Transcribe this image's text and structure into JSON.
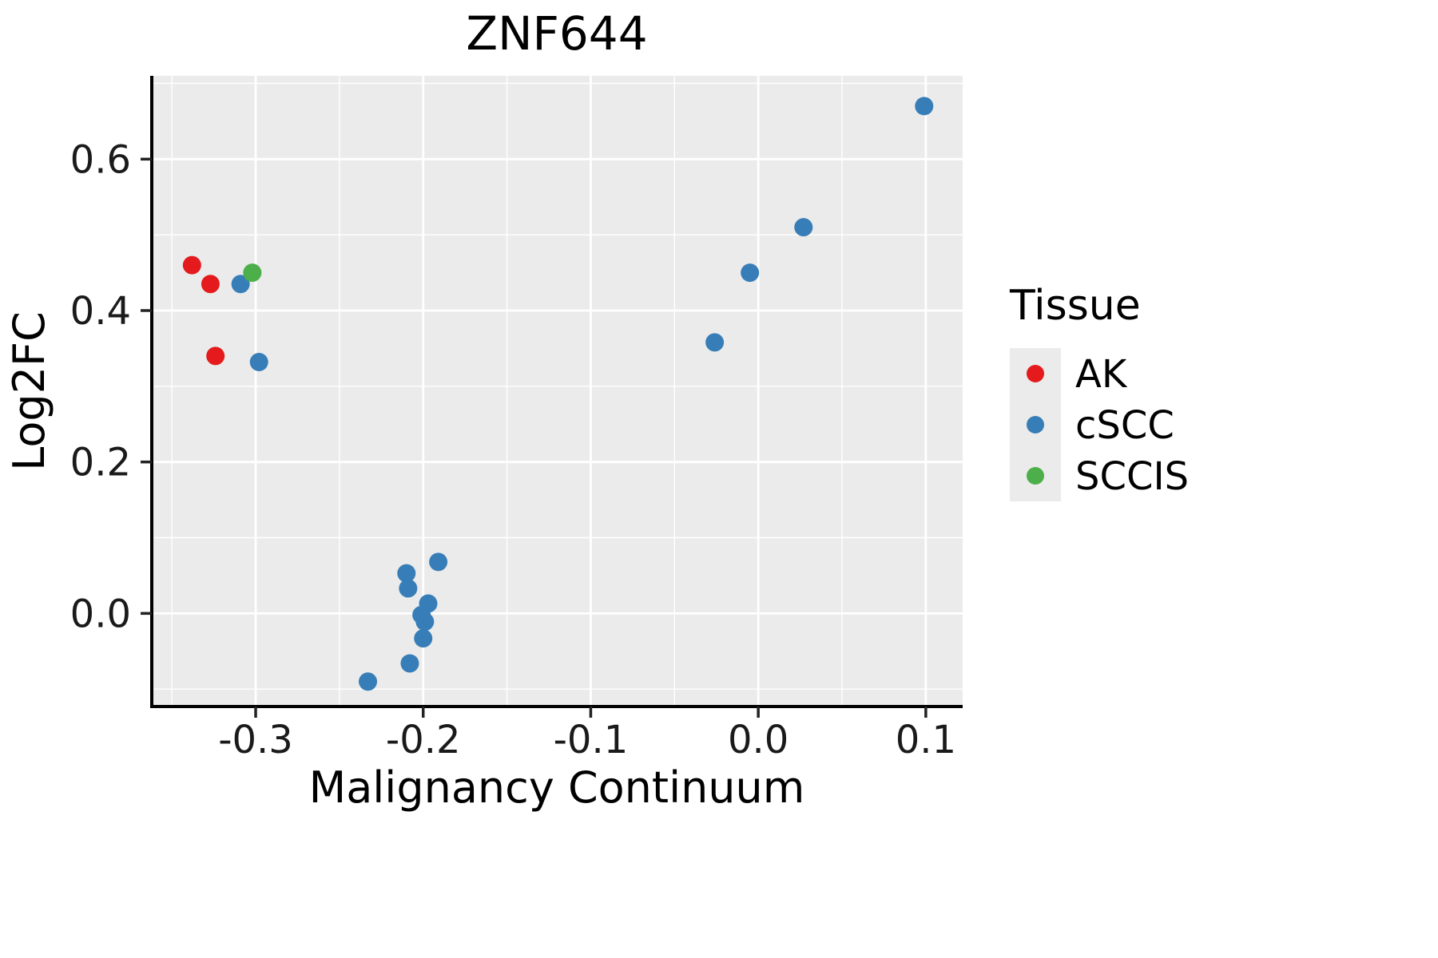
{
  "chart_data": {
    "type": "scatter",
    "title": "ZNF644",
    "xlabel": "Malignancy Continuum",
    "ylabel": "Log2FC",
    "legend_title": "Tissue",
    "legend_position": "right",
    "grid": true,
    "panel_bg": "#EBEBEB",
    "grid_color": "#FFFFFF",
    "legend_key_bg": "#EBEBEB",
    "xlim": [
      -0.362,
      0.122
    ],
    "ylim": [
      -0.123,
      0.71
    ],
    "x_ticks": [
      -0.3,
      -0.2,
      -0.1,
      0.0,
      0.1
    ],
    "y_ticks": [
      0.0,
      0.2,
      0.4,
      0.6
    ],
    "x_minor_ticks": [
      -0.35,
      -0.25,
      -0.15,
      -0.05,
      0.05
    ],
    "y_minor_ticks": [
      -0.1,
      0.1,
      0.3,
      0.5,
      0.7
    ],
    "series": [
      {
        "name": "AK",
        "color": "#E41A1C",
        "points": [
          [
            -0.338,
            0.46
          ],
          [
            -0.327,
            0.435
          ],
          [
            -0.324,
            0.34
          ]
        ]
      },
      {
        "name": "cSCC",
        "color": "#377EB8",
        "points": [
          [
            -0.309,
            0.435
          ],
          [
            -0.298,
            0.332
          ],
          [
            0.099,
            0.67
          ],
          [
            0.027,
            0.51
          ],
          [
            -0.005,
            0.45
          ],
          [
            -0.026,
            0.358
          ],
          [
            -0.191,
            0.068
          ],
          [
            -0.21,
            0.053
          ],
          [
            -0.209,
            0.033
          ],
          [
            -0.197,
            0.013
          ],
          [
            -0.201,
            -0.002
          ],
          [
            -0.199,
            -0.011
          ],
          [
            -0.2,
            -0.033
          ],
          [
            -0.208,
            -0.066
          ],
          [
            -0.233,
            -0.09
          ]
        ]
      },
      {
        "name": "SCCIS",
        "color": "#4DAF4A",
        "points": [
          [
            -0.302,
            0.45
          ]
        ]
      }
    ]
  }
}
